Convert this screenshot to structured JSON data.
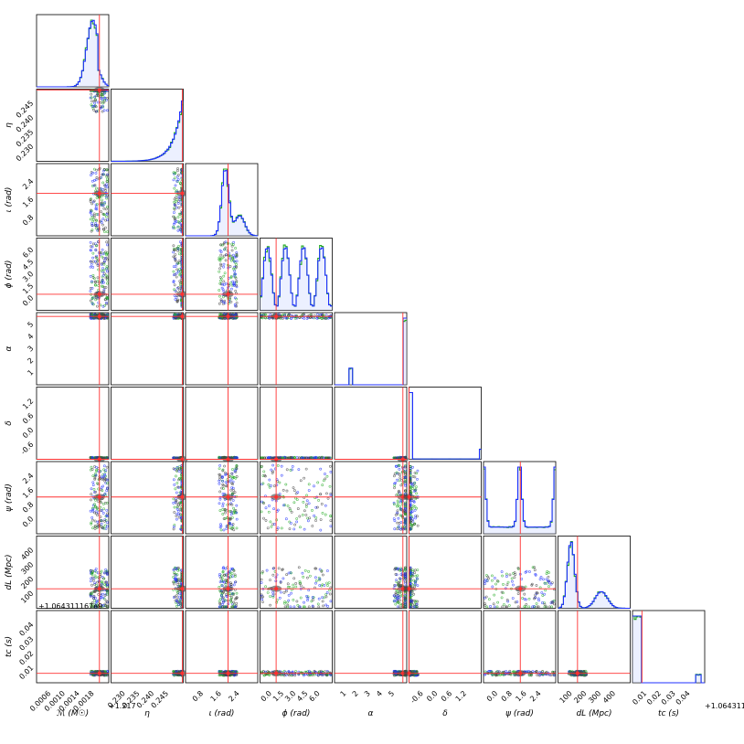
{
  "chart_data": {
    "type": "corner",
    "parameters": [
      {
        "key": "mc",
        "label": "ℳ (M☉)",
        "ticks": [
          "0.0006",
          "0.0010",
          "0.0014",
          "0.0018"
        ],
        "offset": "+1.217",
        "range": [
          0.0003,
          0.002
        ],
        "truth": 0.00178
      },
      {
        "key": "eta",
        "label": "η",
        "ticks": [
          "0.230",
          "0.235",
          "0.240",
          "0.245"
        ],
        "offset": "",
        "range": [
          0.228,
          0.25
        ],
        "truth": 0.2497
      },
      {
        "key": "iota",
        "label": "ι (rad)",
        "ticks": [
          "0.8",
          "1.6",
          "2.4"
        ],
        "offset": "",
        "range": [
          0.0,
          3.14
        ],
        "truth": 1.85
      },
      {
        "key": "phi",
        "label": "ϕ (rad)",
        "ticks": [
          "0.0",
          "1.5",
          "3.0",
          "4.5",
          "6.0"
        ],
        "offset": "",
        "range": [
          0.0,
          6.28
        ],
        "truth": 1.4
      },
      {
        "key": "alpha",
        "label": "α",
        "ticks": [
          "1",
          "2",
          "3",
          "4",
          "5"
        ],
        "offset": "",
        "range": [
          0.5,
          5.2
        ],
        "truth": 4.95
      },
      {
        "key": "delta",
        "label": "δ",
        "ticks": [
          "-0.6",
          "0.0",
          "0.6",
          "1.2"
        ],
        "offset": "",
        "range": [
          -1.0,
          1.25
        ],
        "truth": -1.0
      },
      {
        "key": "psi",
        "label": "ψ (rad)",
        "ticks": [
          "0.0",
          "0.8",
          "1.6",
          "2.4"
        ],
        "offset": "",
        "range": [
          0.0,
          3.14
        ],
        "truth": 1.6
      },
      {
        "key": "dL",
        "label": "dL (Mpc)",
        "ticks": [
          "100",
          "200",
          "300",
          "400"
        ],
        "offset": "",
        "range": [
          60,
          430
        ],
        "truth": 160
      },
      {
        "key": "tc",
        "label": "tc (s)",
        "ticks": [
          "0.01",
          "0.02",
          "0.03",
          "0.04"
        ],
        "offset": "+1.064311167e9",
        "range": [
          0.003,
          0.045
        ],
        "truth": 0.0085
      }
    ],
    "truth_color": "#ff3030",
    "series_colors": [
      "#1f2fff",
      "#22aa22",
      "#444444"
    ]
  }
}
